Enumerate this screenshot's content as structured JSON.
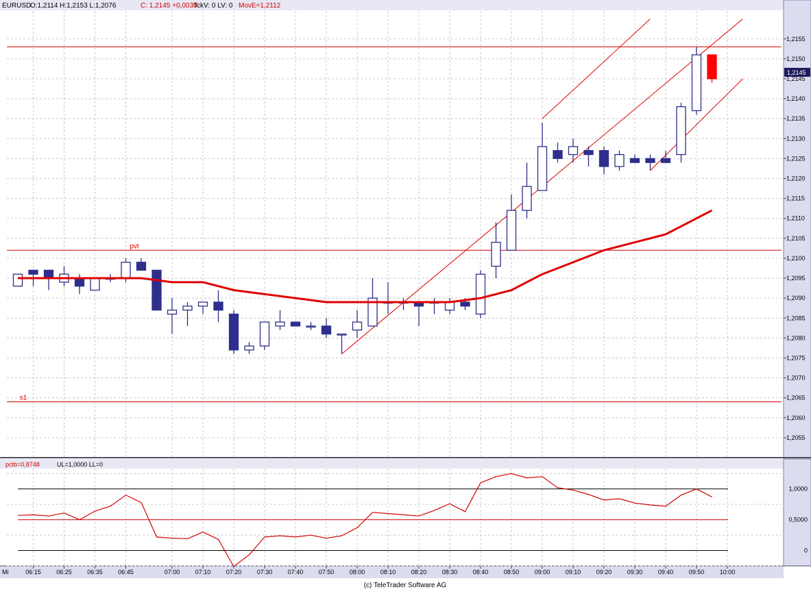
{
  "colors": {
    "up_candle": "#2e2e8c",
    "down_candle": "#2e2e8c",
    "last_candle": "#ff0000",
    "moving_average": "#e00000",
    "channel": "#e00000",
    "level_line": "#d00000",
    "indicator_line": "#d00000",
    "band_line": "#000000",
    "grid": "#c8c8c8",
    "axis_panel": "#dcdcf0",
    "header_bg": "#e8e8f4",
    "current_price_bg": "#1c1c5c"
  },
  "main_header": {
    "symbol": "EURUSD",
    "ohlc": "O:1,2114 H:1,2153 L:1,2076",
    "close": "C: 1,2145 +0,0030",
    "tick": "TckV: 0 LV: 0",
    "ma": "MovE=1,2112"
  },
  "indicator_header": {
    "name": "pctb=0,8748",
    "limits": "UL=1,0000 LL=0"
  },
  "current_price_label": "1,2145",
  "day_label": "Mi",
  "footer": "(c) TeleTrader Software AG",
  "chart_data": [
    {
      "type": "candlestick",
      "symbol": "EURUSD",
      "ylim": [
        1.205,
        1.2162
      ],
      "y_ticks": [
        "1,2155",
        "1,2150",
        "1,2145",
        "1,2140",
        "1,2135",
        "1,2130",
        "1,2125",
        "1,2120",
        "1,2115",
        "1,2110",
        "1,2105",
        "1,2100",
        "1,2095",
        "1,2090",
        "1,2085",
        "1,2080",
        "1,2075",
        "1,2070",
        "1,2065",
        "1,2060",
        "1,2055"
      ],
      "y_tick_values": [
        1.2155,
        1.215,
        1.2145,
        1.214,
        1.2135,
        1.213,
        1.2125,
        1.212,
        1.2115,
        1.211,
        1.2105,
        1.21,
        1.2095,
        1.209,
        1.2085,
        1.208,
        1.2075,
        1.207,
        1.2065,
        1.206,
        1.2055
      ],
      "x_ticks": [
        "06:15",
        "06:25",
        "06:35",
        "06:45",
        "07:00",
        "07:10",
        "07:20",
        "07:30",
        "07:40",
        "07:50",
        "08:00",
        "08:10",
        "08:20",
        "08:30",
        "08:40",
        "08:50",
        "09:00",
        "09:10",
        "09:20",
        "09:30",
        "09:40",
        "09:50",
        "10:00"
      ],
      "x_tick_times": [
        "06:15",
        "06:25",
        "06:35",
        "06:45",
        "07:00",
        "07:10",
        "07:20",
        "07:30",
        "07:40",
        "07:50",
        "08:00",
        "08:10",
        "08:20",
        "08:30",
        "08:40",
        "08:50",
        "09:00",
        "09:10",
        "09:20",
        "09:30",
        "09:40",
        "09:50",
        "10:00"
      ],
      "candles": [
        {
          "t": "06:10",
          "o": 1.2093,
          "h": 1.2096,
          "l": 1.2093,
          "c": 1.2096
        },
        {
          "t": "06:15",
          "o": 1.2097,
          "h": 1.2097,
          "l": 1.2093,
          "c": 1.2096
        },
        {
          "t": "06:20",
          "o": 1.2097,
          "h": 1.2097,
          "l": 1.2092,
          "c": 1.2095
        },
        {
          "t": "06:25",
          "o": 1.2094,
          "h": 1.2098,
          "l": 1.2093,
          "c": 1.2096
        },
        {
          "t": "06:30",
          "o": 1.2095,
          "h": 1.2096,
          "l": 1.2091,
          "c": 1.2093
        },
        {
          "t": "06:35",
          "o": 1.2092,
          "h": 1.2095,
          "l": 1.2092,
          "c": 1.2095
        },
        {
          "t": "06:40",
          "o": 1.2095,
          "h": 1.2096,
          "l": 1.2094,
          "c": 1.2095
        },
        {
          "t": "06:45",
          "o": 1.2095,
          "h": 1.21,
          "l": 1.2094,
          "c": 1.2099
        },
        {
          "t": "06:50",
          "o": 1.2099,
          "h": 1.21,
          "l": 1.2097,
          "c": 1.2097
        },
        {
          "t": "06:55",
          "o": 1.2097,
          "h": 1.2097,
          "l": 1.2087,
          "c": 1.2087
        },
        {
          "t": "07:00",
          "o": 1.2086,
          "h": 1.209,
          "l": 1.2081,
          "c": 1.2087
        },
        {
          "t": "07:05",
          "o": 1.2087,
          "h": 1.2089,
          "l": 1.2083,
          "c": 1.2088
        },
        {
          "t": "07:10",
          "o": 1.2088,
          "h": 1.2089,
          "l": 1.2086,
          "c": 1.2089
        },
        {
          "t": "07:15",
          "o": 1.2089,
          "h": 1.2092,
          "l": 1.2084,
          "c": 1.2087
        },
        {
          "t": "07:20",
          "o": 1.2086,
          "h": 1.2087,
          "l": 1.2076,
          "c": 1.2077
        },
        {
          "t": "07:25",
          "o": 1.2077,
          "h": 1.2079,
          "l": 1.2076,
          "c": 1.2078
        },
        {
          "t": "07:30",
          "o": 1.2078,
          "h": 1.2084,
          "l": 1.2077,
          "c": 1.2084
        },
        {
          "t": "07:35",
          "o": 1.2083,
          "h": 1.2087,
          "l": 1.2082,
          "c": 1.2084
        },
        {
          "t": "07:40",
          "o": 1.2084,
          "h": 1.2084,
          "l": 1.2083,
          "c": 1.2083
        },
        {
          "t": "07:45",
          "o": 1.2083,
          "h": 1.2084,
          "l": 1.2082,
          "c": 1.2083
        },
        {
          "t": "07:50",
          "o": 1.2083,
          "h": 1.2085,
          "l": 1.208,
          "c": 1.2081
        },
        {
          "t": "07:55",
          "o": 1.2081,
          "h": 1.2081,
          "l": 1.2076,
          "c": 1.2081
        },
        {
          "t": "08:00",
          "o": 1.2082,
          "h": 1.2087,
          "l": 1.208,
          "c": 1.2084
        },
        {
          "t": "08:05",
          "o": 1.2083,
          "h": 1.2095,
          "l": 1.2083,
          "c": 1.209
        },
        {
          "t": "08:10",
          "o": 1.2089,
          "h": 1.2094,
          "l": 1.2086,
          "c": 1.2089
        },
        {
          "t": "08:15",
          "o": 1.2089,
          "h": 1.209,
          "l": 1.2087,
          "c": 1.2089
        },
        {
          "t": "08:20",
          "o": 1.2089,
          "h": 1.2089,
          "l": 1.2083,
          "c": 1.2088
        },
        {
          "t": "08:25",
          "o": 1.2089,
          "h": 1.209,
          "l": 1.2086,
          "c": 1.2089
        },
        {
          "t": "08:30",
          "o": 1.2087,
          "h": 1.209,
          "l": 1.2086,
          "c": 1.2089
        },
        {
          "t": "08:35",
          "o": 1.2089,
          "h": 1.209,
          "l": 1.2087,
          "c": 1.2088
        },
        {
          "t": "08:40",
          "o": 1.2086,
          "h": 1.2097,
          "l": 1.2085,
          "c": 1.2096
        },
        {
          "t": "08:45",
          "o": 1.2098,
          "h": 1.2109,
          "l": 1.2095,
          "c": 1.2104
        },
        {
          "t": "08:50",
          "o": 1.2102,
          "h": 1.2116,
          "l": 1.2102,
          "c": 1.2112
        },
        {
          "t": "08:55",
          "o": 1.2112,
          "h": 1.2124,
          "l": 1.211,
          "c": 1.2118
        },
        {
          "t": "09:00",
          "o": 1.2117,
          "h": 1.2134,
          "l": 1.2117,
          "c": 1.2128
        },
        {
          "t": "09:05",
          "o": 1.2127,
          "h": 1.2129,
          "l": 1.2124,
          "c": 1.2125
        },
        {
          "t": "09:10",
          "o": 1.2126,
          "h": 1.213,
          "l": 1.2124,
          "c": 1.2128
        },
        {
          "t": "09:15",
          "o": 1.2127,
          "h": 1.2128,
          "l": 1.2123,
          "c": 1.2126
        },
        {
          "t": "09:20",
          "o": 1.2127,
          "h": 1.2128,
          "l": 1.2121,
          "c": 1.2123
        },
        {
          "t": "09:25",
          "o": 1.2123,
          "h": 1.2127,
          "l": 1.2122,
          "c": 1.2126
        },
        {
          "t": "09:30",
          "o": 1.2125,
          "h": 1.2126,
          "l": 1.2124,
          "c": 1.2124
        },
        {
          "t": "09:35",
          "o": 1.2125,
          "h": 1.2126,
          "l": 1.2122,
          "c": 1.2124
        },
        {
          "t": "09:40",
          "o": 1.2125,
          "h": 1.2127,
          "l": 1.2124,
          "c": 1.2124
        },
        {
          "t": "09:45",
          "o": 1.2126,
          "h": 1.2139,
          "l": 1.2124,
          "c": 1.2138
        },
        {
          "t": "09:50",
          "o": 1.2137,
          "h": 1.2153,
          "l": 1.2136,
          "c": 1.2151
        },
        {
          "t": "09:55",
          "o": 1.2151,
          "h": 1.2151,
          "l": 1.2144,
          "c": 1.2145
        }
      ],
      "moving_average": {
        "times": [
          "06:10",
          "06:20",
          "06:30",
          "06:40",
          "06:50",
          "07:00",
          "07:10",
          "07:20",
          "07:30",
          "07:40",
          "07:50",
          "08:00",
          "08:10",
          "08:20",
          "08:30",
          "08:40",
          "08:50",
          "09:00",
          "09:10",
          "09:20",
          "09:30",
          "09:40",
          "09:50",
          "09:55"
        ],
        "values": [
          1.2095,
          1.2095,
          1.2095,
          1.2095,
          1.2095,
          1.2094,
          1.2094,
          1.2092,
          1.2091,
          1.209,
          1.2089,
          1.2089,
          1.2089,
          1.2089,
          1.2089,
          1.209,
          1.2092,
          1.2096,
          1.2099,
          1.2102,
          1.2104,
          1.2106,
          1.211,
          1.2112
        ]
      },
      "levels": [
        {
          "label": "",
          "value": 1.2153
        },
        {
          "label": "pvt",
          "value": 1.2102
        },
        {
          "label": "s1",
          "value": 1.2064
        }
      ],
      "trend_channel": {
        "lower": [
          {
            "t": "07:55",
            "y": 1.2076
          },
          {
            "t": "10:05",
            "y": 1.216
          }
        ],
        "upper": [
          {
            "t": "09:00",
            "y": 1.2135
          },
          {
            "t": "09:35",
            "y": 1.216
          }
        ],
        "bottom": [
          {
            "t": "09:35",
            "y": 1.2122
          },
          {
            "t": "10:05",
            "y": 1.2145
          }
        ]
      }
    },
    {
      "type": "line",
      "name": "pctb",
      "ylim": [
        -0.25,
        1.33
      ],
      "y_ticks": [
        "1,0000",
        "0,5000",
        "0"
      ],
      "y_tick_values": [
        1.0,
        0.5,
        0.0
      ],
      "reference_lines": [
        {
          "value": 1.0,
          "color": "band"
        },
        {
          "value": 0.5,
          "color": "level"
        },
        {
          "value": 0.0,
          "color": "band"
        }
      ],
      "x": [
        "06:10",
        "06:15",
        "06:20",
        "06:25",
        "06:30",
        "06:35",
        "06:40",
        "06:45",
        "06:50",
        "06:55",
        "07:00",
        "07:05",
        "07:10",
        "07:15",
        "07:20",
        "07:25",
        "07:30",
        "07:35",
        "07:40",
        "07:45",
        "07:50",
        "07:55",
        "08:00",
        "08:05",
        "08:10",
        "08:15",
        "08:20",
        "08:25",
        "08:30",
        "08:35",
        "08:40",
        "08:45",
        "08:50",
        "08:55",
        "09:00",
        "09:05",
        "09:10",
        "09:15",
        "09:20",
        "09:25",
        "09:30",
        "09:35",
        "09:40",
        "09:45",
        "09:50",
        "09:55"
      ],
      "values": [
        0.57,
        0.58,
        0.56,
        0.61,
        0.5,
        0.64,
        0.72,
        0.9,
        0.78,
        0.22,
        0.2,
        0.19,
        0.3,
        0.18,
        -0.26,
        -0.07,
        0.22,
        0.24,
        0.22,
        0.25,
        0.2,
        0.24,
        0.37,
        0.62,
        0.6,
        0.58,
        0.56,
        0.65,
        0.76,
        0.63,
        1.1,
        1.2,
        1.25,
        1.18,
        1.2,
        1.02,
        0.98,
        0.91,
        0.82,
        0.84,
        0.77,
        0.74,
        0.72,
        0.9,
        1.0,
        0.87
      ]
    }
  ]
}
